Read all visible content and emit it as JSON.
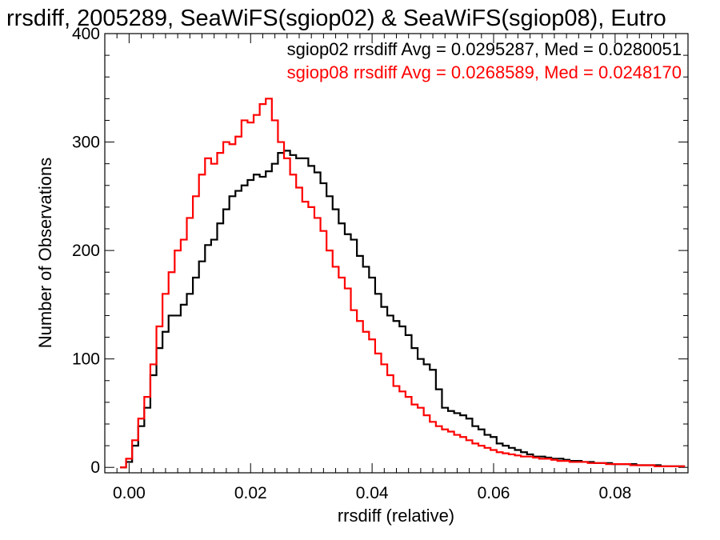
{
  "chart_data": {
    "type": "line",
    "style": "step",
    "title": "rrsdiff, 2005289, SeaWiFS(sgiop02) & SeaWiFS(sgiop08), Eutro",
    "xlabel": "rrsdiff (relative)",
    "ylabel": "Number of Observations",
    "xlim": [
      -0.004,
      0.092
    ],
    "ylim": [
      -5,
      400
    ],
    "x_ticks": [
      0.0,
      0.02,
      0.04,
      0.06,
      0.08
    ],
    "x_tick_labels": [
      "0.00",
      "0.02",
      "0.04",
      "0.06",
      "0.08"
    ],
    "y_ticks": [
      0,
      100,
      200,
      300,
      400
    ],
    "y_tick_labels": [
      "0",
      "100",
      "200",
      "300",
      "400"
    ],
    "grid": false,
    "legend_placement": "top-right",
    "annotations": [
      {
        "text": "sgiop02 rrsdiff Avg = 0.0295287, Med = 0.0280051",
        "color": "#000000"
      },
      {
        "text": "sgiop08 rrsdiff Avg = 0.0268589, Med = 0.0248170",
        "color": "#ff0000"
      }
    ],
    "series": [
      {
        "color": "#000000",
        "x": [
          -0.001,
          0.0,
          0.001,
          0.002,
          0.003,
          0.004,
          0.005,
          0.006,
          0.007,
          0.008,
          0.009,
          0.01,
          0.011,
          0.012,
          0.013,
          0.014,
          0.015,
          0.016,
          0.017,
          0.018,
          0.019,
          0.02,
          0.021,
          0.022,
          0.023,
          0.024,
          0.025,
          0.026,
          0.027,
          0.028,
          0.029,
          0.03,
          0.031,
          0.032,
          0.033,
          0.034,
          0.035,
          0.036,
          0.037,
          0.038,
          0.039,
          0.04,
          0.041,
          0.042,
          0.043,
          0.044,
          0.045,
          0.046,
          0.047,
          0.048,
          0.049,
          0.05,
          0.051,
          0.052,
          0.053,
          0.054,
          0.055,
          0.056,
          0.057,
          0.058,
          0.059,
          0.06,
          0.061,
          0.062,
          0.063,
          0.064,
          0.065,
          0.066,
          0.067,
          0.068,
          0.069,
          0.07,
          0.071,
          0.072,
          0.073,
          0.074,
          0.075,
          0.076,
          0.077,
          0.078,
          0.079,
          0.08,
          0.081,
          0.082,
          0.083,
          0.084,
          0.085,
          0.086,
          0.087,
          0.088,
          0.089,
          0.09,
          0.091
        ],
        "values": [
          0,
          5,
          20,
          38,
          55,
          85,
          110,
          125,
          140,
          140,
          150,
          160,
          175,
          190,
          205,
          210,
          225,
          238,
          250,
          255,
          260,
          265,
          270,
          268,
          273,
          280,
          290,
          292,
          288,
          285,
          285,
          278,
          272,
          262,
          250,
          238,
          225,
          215,
          210,
          195,
          185,
          175,
          160,
          148,
          140,
          135,
          130,
          122,
          110,
          100,
          95,
          90,
          72,
          55,
          52,
          50,
          48,
          45,
          38,
          35,
          30,
          28,
          22,
          20,
          18,
          16,
          14,
          12,
          10,
          10,
          9,
          8,
          8,
          7,
          6,
          6,
          5,
          5,
          4,
          4,
          4,
          3,
          3,
          3,
          3,
          2,
          2,
          2,
          2,
          1,
          1,
          1,
          1
        ]
      },
      {
        "color": "#ff0000",
        "x": [
          -0.001,
          0.0,
          0.001,
          0.002,
          0.003,
          0.004,
          0.005,
          0.006,
          0.007,
          0.008,
          0.009,
          0.01,
          0.011,
          0.012,
          0.013,
          0.014,
          0.015,
          0.016,
          0.017,
          0.018,
          0.019,
          0.02,
          0.021,
          0.022,
          0.023,
          0.024,
          0.025,
          0.026,
          0.027,
          0.028,
          0.029,
          0.03,
          0.031,
          0.032,
          0.033,
          0.034,
          0.035,
          0.036,
          0.037,
          0.038,
          0.039,
          0.04,
          0.041,
          0.042,
          0.043,
          0.044,
          0.045,
          0.046,
          0.047,
          0.048,
          0.049,
          0.05,
          0.051,
          0.052,
          0.053,
          0.054,
          0.055,
          0.056,
          0.057,
          0.058,
          0.059,
          0.06,
          0.061,
          0.062,
          0.063,
          0.064,
          0.065,
          0.066,
          0.067,
          0.068,
          0.069,
          0.07,
          0.071,
          0.072,
          0.073,
          0.074,
          0.075,
          0.076,
          0.077,
          0.078,
          0.079,
          0.08,
          0.081,
          0.082,
          0.083,
          0.084,
          0.085,
          0.086,
          0.087,
          0.088,
          0.089,
          0.09,
          0.091
        ],
        "values": [
          0,
          8,
          25,
          45,
          65,
          95,
          130,
          160,
          180,
          200,
          210,
          230,
          250,
          270,
          285,
          280,
          290,
          300,
          298,
          305,
          320,
          318,
          325,
          335,
          340,
          320,
          300,
          285,
          270,
          258,
          245,
          240,
          230,
          218,
          200,
          185,
          175,
          165,
          145,
          135,
          125,
          118,
          105,
          95,
          85,
          75,
          70,
          65,
          58,
          55,
          48,
          42,
          38,
          35,
          33,
          30,
          28,
          25,
          22,
          20,
          18,
          16,
          14,
          13,
          12,
          11,
          10,
          10,
          9,
          8,
          8,
          7,
          6,
          6,
          5,
          5,
          5,
          4,
          4,
          4,
          3,
          3,
          3,
          3,
          2,
          2,
          2,
          2,
          1,
          1,
          1,
          1,
          1
        ]
      }
    ]
  }
}
